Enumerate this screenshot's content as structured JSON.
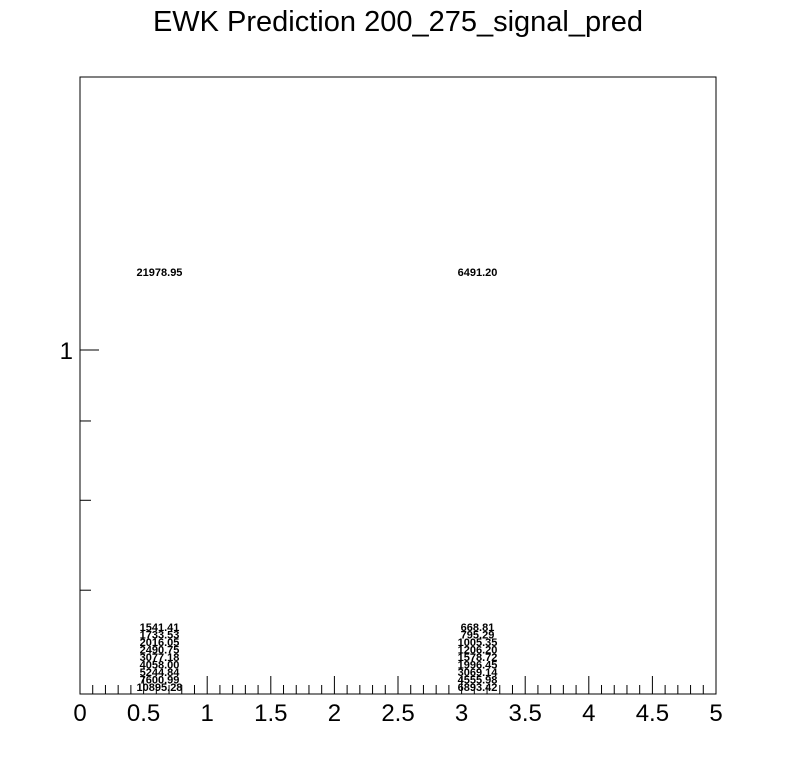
{
  "chart_data": {
    "type": "scatter",
    "title": "EWK Prediction 200_275_signal_pred",
    "xlabel": "",
    "ylabel": "",
    "xlim": [
      0,
      5
    ],
    "ylim": [
      0.6,
      1.5
    ],
    "log_y": true,
    "grid": false,
    "x_tick_labels": [
      "0",
      "0.5",
      "1",
      "1.5",
      "2",
      "2.5",
      "3",
      "3.5",
      "4",
      "4.5",
      "5"
    ],
    "y_tick_labels": [
      "1"
    ],
    "annotation_groups": [
      {
        "x": 0.625,
        "labels": [
          "21978.95",
          "1541.41",
          "1733.53",
          "2016.05",
          "2490.75",
          "3077.18",
          "4058.00",
          "5244.84",
          "7600.99",
          "10895.28"
        ]
      },
      {
        "x": 3.125,
        "labels": [
          "6491.20",
          "668.81",
          "795.29",
          "1005.35",
          "1206.20",
          "1578.72",
          "1996.45",
          "3069.14",
          "4555.98",
          "6893.42"
        ]
      }
    ]
  }
}
